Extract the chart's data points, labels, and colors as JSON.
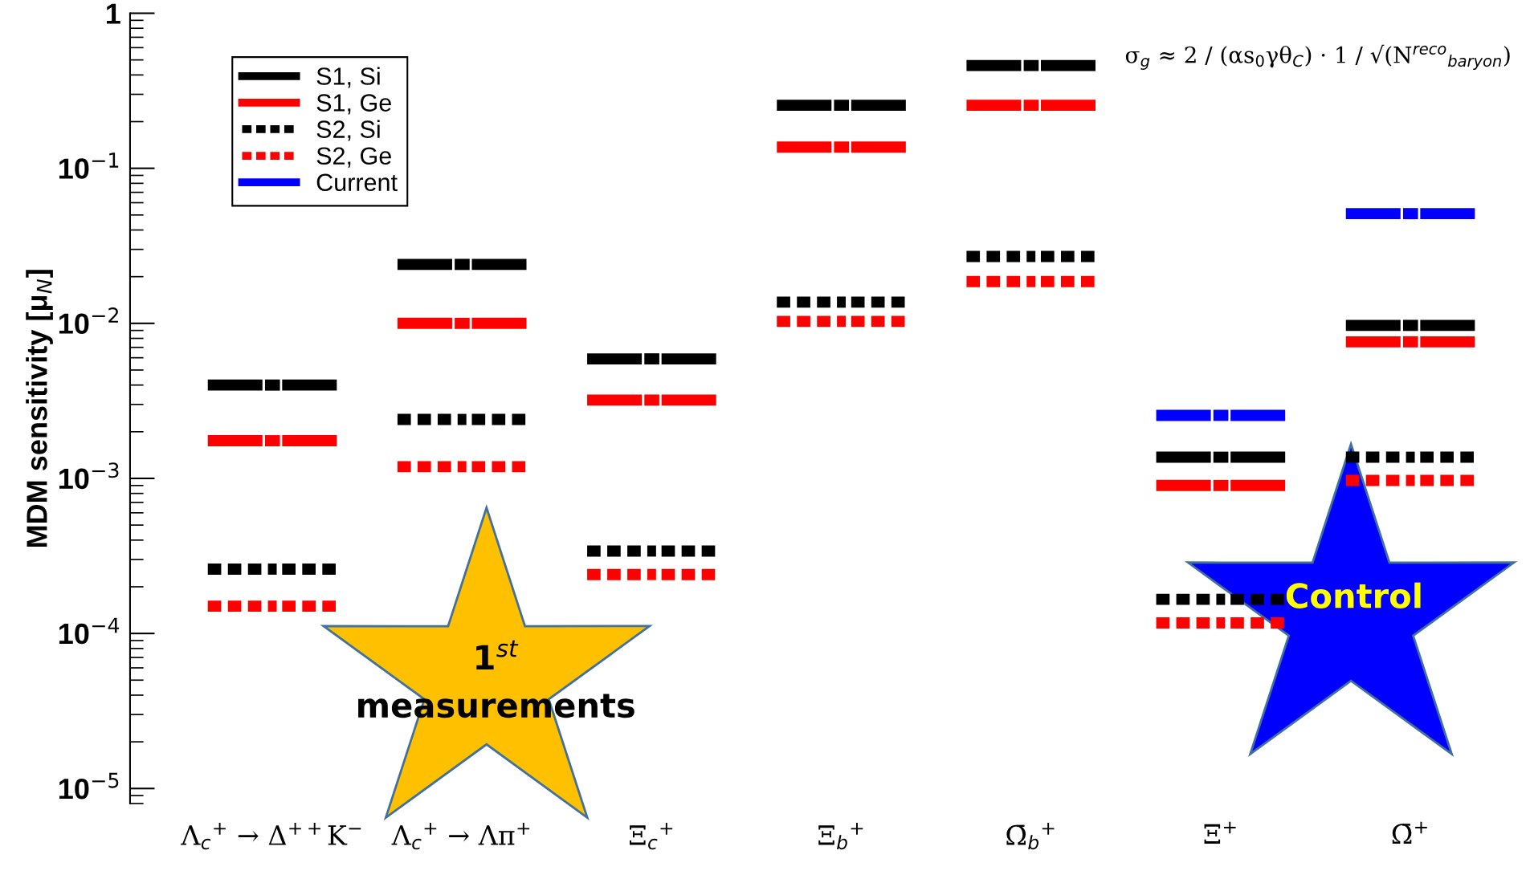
{
  "chart_data": {
    "type": "scatter",
    "ylabel": "MDM sensitivity [μ$_{N}$]",
    "categories": [
      "Λ$_{c}$$^{+}$ → Δ$^{++}$K$^{−}$",
      "Λ$_{c}$$^{+}$ → Λπ$^{+}$",
      "Ξ$_{c}$$^{+}$",
      "Ξ$_{b}$$^{+}$",
      "Ω̄$_{b}$$^{+}$",
      "Ξ$^{+}$",
      "Ω̄$^{+}$"
    ],
    "series": [
      {
        "name": "S1, Si",
        "color": "#000000",
        "line_style": "solid",
        "values": [
          0.004,
          0.024,
          0.0059,
          0.255,
          0.46,
          0.00137,
          0.0097
        ]
      },
      {
        "name": "S1, Ge",
        "color": "#ff0000",
        "line_style": "solid",
        "values": [
          0.00175,
          0.01,
          0.0032,
          0.137,
          0.255,
          0.0009,
          0.0076
        ]
      },
      {
        "name": "S2, Si",
        "color": "#000000",
        "line_style": "dotted",
        "values": [
          0.00026,
          0.0024,
          0.00034,
          0.0137,
          0.027,
          0.000166,
          0.00137
        ]
      },
      {
        "name": "S2, Ge",
        "color": "#ff0000",
        "line_style": "dotted",
        "values": [
          0.00015,
          0.00119,
          0.00024,
          0.0103,
          0.0186,
          0.000117,
          0.00097
        ]
      },
      {
        "name": "Current",
        "color": "#0000ff",
        "line_style": "solid",
        "values": [
          null,
          null,
          null,
          null,
          null,
          0.00255,
          0.051
        ]
      }
    ],
    "log": "y",
    "ylim": [
      8e-06,
      1
    ],
    "yticks": [
      {
        "value": 1e-05,
        "label": "10$^{−5}$"
      },
      {
        "value": 0.0001,
        "label": "10$^{−4}$"
      },
      {
        "value": 0.001,
        "label": "10$^{−3}$"
      },
      {
        "value": 0.01,
        "label": "10$^{−2}$"
      },
      {
        "value": 0.1,
        "label": "10$^{−1}$"
      },
      1
    ],
    "legend": "top left",
    "grid": false,
    "annotations": [
      "σ$_{g}$ ≈ 2 / (αs$_{0}$γθ$_{C}$) · 1 / √(N$^{reco}$$_{baryon}$)",
      "1$^{st}$\nmeasurements",
      "Control"
    ]
  }
}
